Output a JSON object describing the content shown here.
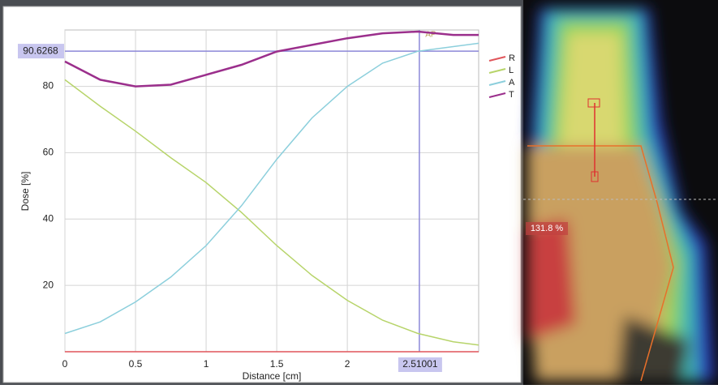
{
  "chart_data": {
    "type": "line",
    "x_label": "Distance [cm]",
    "y_label": "Dose [%]",
    "x": [
      0,
      0.25,
      0.5,
      0.75,
      1,
      1.25,
      1.5,
      1.75,
      2,
      2.25,
      2.5,
      2.75,
      2.93
    ],
    "series": [
      {
        "name": "R",
        "color": "#e0555a",
        "values": [
          0,
          0,
          0,
          0,
          0,
          0,
          0,
          0,
          0,
          0,
          0,
          0,
          0
        ]
      },
      {
        "name": "L",
        "color": "#b7d46a",
        "values": [
          82,
          74,
          66.5,
          58.5,
          51,
          42,
          32,
          23,
          15.5,
          9.5,
          5.5,
          3,
          2
        ]
      },
      {
        "name": "A",
        "color": "#8ccfdc",
        "values": [
          5.5,
          9,
          15,
          22.5,
          32,
          44,
          58,
          70.5,
          80,
          87,
          90.6,
          92,
          93
        ]
      },
      {
        "name": "T",
        "color": "#9b2f8c",
        "values": [
          87.5,
          82,
          80,
          80.5,
          83.5,
          86.5,
          90.5,
          92.5,
          94.5,
          96,
          96.5,
          95.5,
          95.5
        ]
      }
    ],
    "xlim": [
      0,
      2.93
    ],
    "ylim": [
      0,
      97
    ],
    "xticks": [
      0,
      0.5,
      1,
      1.5,
      2
    ],
    "yticks": [
      20,
      40,
      60,
      80
    ],
    "grid": true,
    "cursor_x": 2.51001,
    "cursor_y": 90.6268,
    "annotation": "AP",
    "image_label": "131.8 %"
  }
}
